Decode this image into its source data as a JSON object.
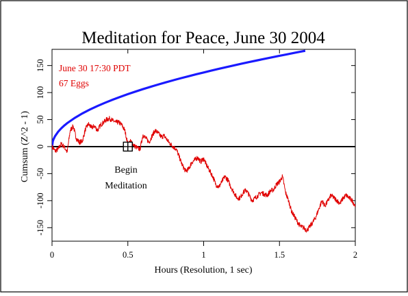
{
  "chart_data": {
    "type": "line",
    "title": "Meditation for Peace, June 30 2004",
    "xlabel": "Hours (Resolution, 1 sec)",
    "ylabel": "Cumsum (Z^2 - 1)",
    "xlim": [
      0,
      2
    ],
    "ylim": [
      -175,
      180
    ],
    "x_ticks": [
      0,
      0.5,
      1,
      1.5,
      2
    ],
    "x_tick_labels": [
      "0",
      "0.5",
      "1",
      "1.5",
      "2"
    ],
    "y_ticks": [
      -150,
      -100,
      -50,
      0,
      50,
      100,
      150
    ],
    "y_tick_labels": [
      "-150",
      "-100",
      "-50",
      "0",
      "50",
      "100",
      "150"
    ],
    "grid": false,
    "annotations": [
      {
        "text": "June 30 17:30 PDT",
        "color": "#e00000"
      },
      {
        "text": "67 Eggs",
        "color": "#e00000"
      },
      {
        "text": "Begin",
        "color": "#000000"
      },
      {
        "text": "Meditation",
        "color": "#000000"
      }
    ],
    "marker": {
      "name": "begin-meditation",
      "x": 0.5,
      "y": 0
    },
    "series": [
      {
        "role": "cumulative deviation",
        "color": "#e00000",
        "x": [
          0,
          0.02,
          0.04,
          0.06,
          0.08,
          0.1,
          0.12,
          0.14,
          0.16,
          0.18,
          0.2,
          0.22,
          0.24,
          0.26,
          0.28,
          0.3,
          0.32,
          0.34,
          0.36,
          0.38,
          0.4,
          0.42,
          0.44,
          0.46,
          0.48,
          0.5,
          0.52,
          0.54,
          0.56,
          0.58,
          0.6,
          0.62,
          0.64,
          0.66,
          0.68,
          0.7,
          0.72,
          0.74,
          0.76,
          0.78,
          0.8,
          0.82,
          0.84,
          0.86,
          0.88,
          0.9,
          0.92,
          0.94,
          0.96,
          0.98,
          1.0,
          1.02,
          1.04,
          1.06,
          1.08,
          1.1,
          1.12,
          1.14,
          1.16,
          1.18,
          1.2,
          1.22,
          1.24,
          1.26,
          1.28,
          1.3,
          1.32,
          1.34,
          1.36,
          1.38,
          1.4,
          1.42,
          1.44,
          1.46,
          1.48,
          1.5,
          1.52,
          1.54,
          1.56,
          1.58,
          1.6,
          1.62,
          1.64,
          1.66,
          1.68,
          1.7,
          1.72,
          1.74,
          1.76,
          1.78,
          1.8,
          1.82,
          1.84,
          1.86,
          1.88,
          1.9,
          1.92,
          1.94,
          1.96,
          1.98,
          2.0
        ],
        "y": [
          0,
          -8,
          -5,
          5,
          0,
          -10,
          30,
          38,
          15,
          8,
          10,
          32,
          42,
          35,
          38,
          30,
          40,
          45,
          50,
          52,
          48,
          45,
          45,
          40,
          30,
          5,
          10,
          2,
          -2,
          -5,
          22,
          15,
          8,
          20,
          30,
          25,
          18,
          20,
          12,
          5,
          0,
          -5,
          -20,
          -35,
          -45,
          -42,
          -30,
          -25,
          -20,
          -28,
          -22,
          -35,
          -45,
          -55,
          -70,
          -75,
          -65,
          -55,
          -62,
          -75,
          -85,
          -95,
          -95,
          -85,
          -80,
          -90,
          -100,
          -95,
          -90,
          -85,
          -88,
          -90,
          -82,
          -80,
          -70,
          -65,
          -55,
          -85,
          -100,
          -120,
          -130,
          -140,
          -148,
          -150,
          -155,
          -148,
          -140,
          -130,
          -115,
          -100,
          -110,
          -100,
          -90,
          -95,
          -100,
          -105,
          -95,
          -90,
          -95,
          -100,
          -110
        ]
      },
      {
        "role": "expected deviation envelope",
        "color": "#1a1aff",
        "x": [
          0,
          0.005,
          0.01,
          0.02,
          0.04,
          0.06,
          0.08,
          0.1,
          0.15,
          0.2,
          0.25,
          0.3,
          0.35,
          0.4,
          0.45,
          0.5,
          0.55,
          0.6,
          0.65,
          0.7,
          0.75,
          0.8,
          0.85,
          0.9,
          0.95,
          1.0,
          1.05,
          1.1,
          1.15,
          1.2,
          1.25,
          1.3,
          1.35,
          1.4,
          1.45,
          1.5,
          1.55,
          1.6,
          1.65,
          1.67
        ],
        "y": [
          0,
          9.7,
          13.7,
          19.4,
          27.4,
          33.6,
          38.8,
          43.4,
          53.1,
          61.4,
          68.6,
          75.2,
          81.2,
          86.8,
          92.1,
          97.1,
          101.8,
          106.4,
          110.7,
          114.9,
          118.9,
          122.8,
          126.6,
          130.2,
          133.8,
          137.2,
          140.6,
          143.9,
          147.1,
          150.3,
          153.4,
          156.4,
          159.4,
          162.3,
          165.2,
          168.0,
          170.8,
          173.6,
          176.3,
          177.3
        ]
      }
    ]
  }
}
